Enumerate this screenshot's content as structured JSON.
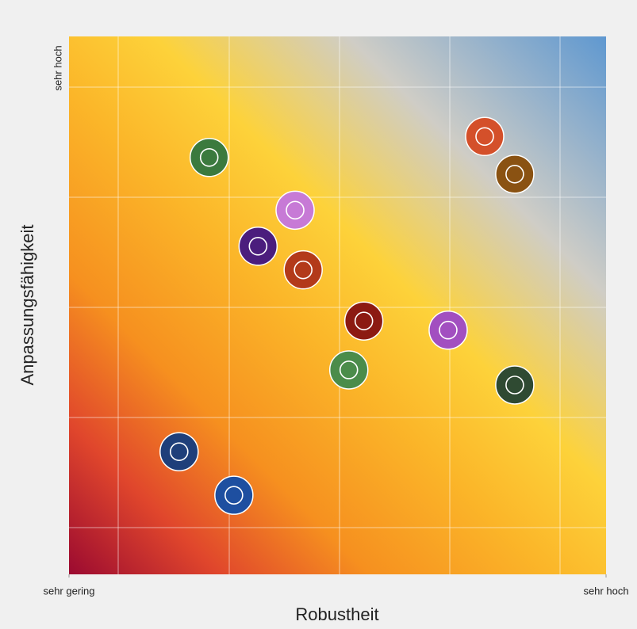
{
  "chart_data": {
    "type": "scatter",
    "x_label": "Robustheit",
    "y_label": "Anpassungsfähigkeit",
    "x": [
      26.1,
      42.1,
      35.2,
      43.6,
      54.9,
      70.6,
      52.1,
      83.0,
      77.4,
      83.0,
      20.5,
      30.7
    ],
    "values": [
      77.5,
      67.7,
      61.0,
      56.6,
      47.1,
      45.4,
      38.0,
      35.2,
      81.4,
      74.4,
      22.8,
      14.7
    ],
    "colors": [
      "#3b7a3e",
      "#c77ad6",
      "#4b1d7d",
      "#b33a1a",
      "#8c1a12",
      "#a24fc0",
      "#4b8c4a",
      "#2f4a32",
      "#d4502a",
      "#8a5212",
      "#1f3f7a",
      "#1e4fa0"
    ],
    "xlim": [
      0,
      100
    ],
    "ylim": [
      0,
      100
    ],
    "xticks": [
      {
        "value": 0,
        "label": "sehr gering"
      },
      {
        "value": 100,
        "label": "sehr hoch"
      }
    ],
    "yticks": [
      {
        "value": 100,
        "label": "sehr hoch"
      }
    ],
    "grid": true
  }
}
